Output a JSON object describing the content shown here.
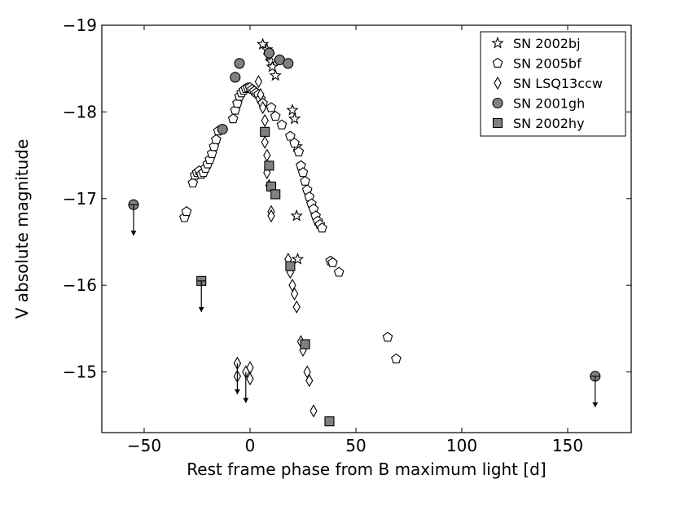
{
  "chart_data": {
    "type": "scatter",
    "title": "",
    "xlabel": "Rest frame phase from B maximum light [d]",
    "ylabel": "V absolute magnitude",
    "xlim": [
      -70,
      180
    ],
    "ylim": [
      -14.3,
      -19
    ],
    "y_inverted": true,
    "x_ticks": [
      -50,
      0,
      50,
      100,
      150
    ],
    "x_tick_labels": [
      "−50",
      "0",
      "50",
      "100",
      "150"
    ],
    "y_ticks": [
      -15,
      -16,
      -17,
      -18,
      -19
    ],
    "y_tick_labels": [
      "−15",
      "−16",
      "−17",
      "−18",
      "−19"
    ],
    "grid": false,
    "legend_position": "top-right",
    "series": [
      {
        "name": "SN 2002bj",
        "marker": "star",
        "fill": "#ffffff",
        "points": [
          [
            6,
            -18.78
          ],
          [
            8,
            -18.72
          ],
          [
            9,
            -18.65
          ],
          [
            10,
            -18.58
          ],
          [
            10.5,
            -18.52
          ],
          [
            12,
            -18.42
          ],
          [
            20,
            -18.02
          ],
          [
            21,
            -17.92
          ],
          [
            22,
            -17.6
          ],
          [
            22,
            -16.8
          ],
          [
            22.5,
            -16.3
          ]
        ]
      },
      {
        "name": "SN 2005bf",
        "marker": "pentagon",
        "fill": "#ffffff",
        "points": [
          [
            -31,
            -16.78
          ],
          [
            -30,
            -16.85
          ],
          [
            -27,
            -17.18
          ],
          [
            -26,
            -17.27
          ],
          [
            -25,
            -17.3
          ],
          [
            -24,
            -17.32
          ],
          [
            -23,
            -17.28
          ],
          [
            -22,
            -17.3
          ],
          [
            -21,
            -17.35
          ],
          [
            -20,
            -17.4
          ],
          [
            -19,
            -17.45
          ],
          [
            -18,
            -17.52
          ],
          [
            -17,
            -17.6
          ],
          [
            -16,
            -17.68
          ],
          [
            -15,
            -17.78
          ],
          [
            -8,
            -17.92
          ],
          [
            -7,
            -18.02
          ],
          [
            -6,
            -18.1
          ],
          [
            -5,
            -18.18
          ],
          [
            -4,
            -18.22
          ],
          [
            -3,
            -18.25
          ],
          [
            -2,
            -18.27
          ],
          [
            -1,
            -18.28
          ],
          [
            0,
            -18.28
          ],
          [
            1,
            -18.26
          ],
          [
            2,
            -18.24
          ],
          [
            3,
            -18.22
          ],
          [
            4,
            -18.2
          ],
          [
            5,
            -18.15
          ],
          [
            6,
            -18.1
          ],
          [
            10,
            -18.05
          ],
          [
            12,
            -17.95
          ],
          [
            15,
            -17.85
          ],
          [
            19,
            -17.72
          ],
          [
            21,
            -17.64
          ],
          [
            23,
            -17.54
          ],
          [
            24,
            -17.38
          ],
          [
            25,
            -17.3
          ],
          [
            26,
            -17.2
          ],
          [
            27,
            -17.1
          ],
          [
            28,
            -17.02
          ],
          [
            29,
            -16.94
          ],
          [
            30,
            -16.88
          ],
          [
            31,
            -16.8
          ],
          [
            32,
            -16.74
          ],
          [
            33,
            -16.7
          ],
          [
            34,
            -16.66
          ],
          [
            38,
            -16.28
          ],
          [
            39,
            -16.26
          ],
          [
            42,
            -16.15
          ],
          [
            65,
            -15.4
          ],
          [
            69,
            -15.15
          ]
        ]
      },
      {
        "name": "SN LSQ13ccw",
        "marker": "diamond",
        "fill": "#ffffff",
        "points": [
          [
            -6,
            -15.1
          ],
          [
            -6,
            -14.95
          ],
          [
            -1,
            -15
          ],
          [
            0,
            -14.92
          ],
          [
            0,
            -15.05
          ],
          [
            4,
            -18.35
          ],
          [
            5,
            -18.2
          ],
          [
            6,
            -18.05
          ],
          [
            7,
            -17.9
          ],
          [
            7,
            -17.65
          ],
          [
            8,
            -17.5
          ],
          [
            8,
            -17.3
          ],
          [
            9,
            -17.15
          ],
          [
            10,
            -16.85
          ],
          [
            10,
            -16.8
          ],
          [
            18,
            -16.3
          ],
          [
            19,
            -16.15
          ],
          [
            20,
            -16
          ],
          [
            21,
            -15.9
          ],
          [
            22,
            -15.75
          ],
          [
            24,
            -15.35
          ],
          [
            25,
            -15.25
          ],
          [
            27,
            -15.0
          ],
          [
            28,
            -14.9
          ],
          [
            30,
            -14.55
          ]
        ]
      },
      {
        "name": "SN 2001gh",
        "marker": "circle",
        "fill": "#808080",
        "points": [
          [
            -7,
            -18.4
          ],
          [
            -5,
            -18.56
          ],
          [
            -13,
            -17.8
          ],
          [
            9,
            -18.68
          ],
          [
            14,
            -18.6
          ],
          [
            18,
            -18.56
          ]
        ]
      },
      {
        "name": "SN 2002hy",
        "marker": "square",
        "fill": "#808080",
        "points": [
          [
            7,
            -17.77
          ],
          [
            9,
            -17.38
          ],
          [
            10,
            -17.14
          ],
          [
            12,
            -17.05
          ],
          [
            19,
            -16.22
          ],
          [
            26,
            -15.32
          ],
          [
            37.5,
            -14.43
          ]
        ]
      }
    ],
    "upper_limits": [
      {
        "name": "SN 2001gh",
        "marker": "circle-half",
        "x": -55,
        "y": -16.93
      },
      {
        "name": "SN 2002hy",
        "marker": "square-half",
        "x": -23,
        "y": -16.05
      },
      {
        "name": "SN LSQ13ccw",
        "marker": "diamond",
        "x": -6,
        "y": -15.1
      },
      {
        "name": "SN LSQ13ccw",
        "marker": "diamond",
        "x": -2,
        "y": -15.0
      },
      {
        "name": "SN 2001gh",
        "marker": "circle-half",
        "x": 163,
        "y": -14.95
      }
    ]
  }
}
